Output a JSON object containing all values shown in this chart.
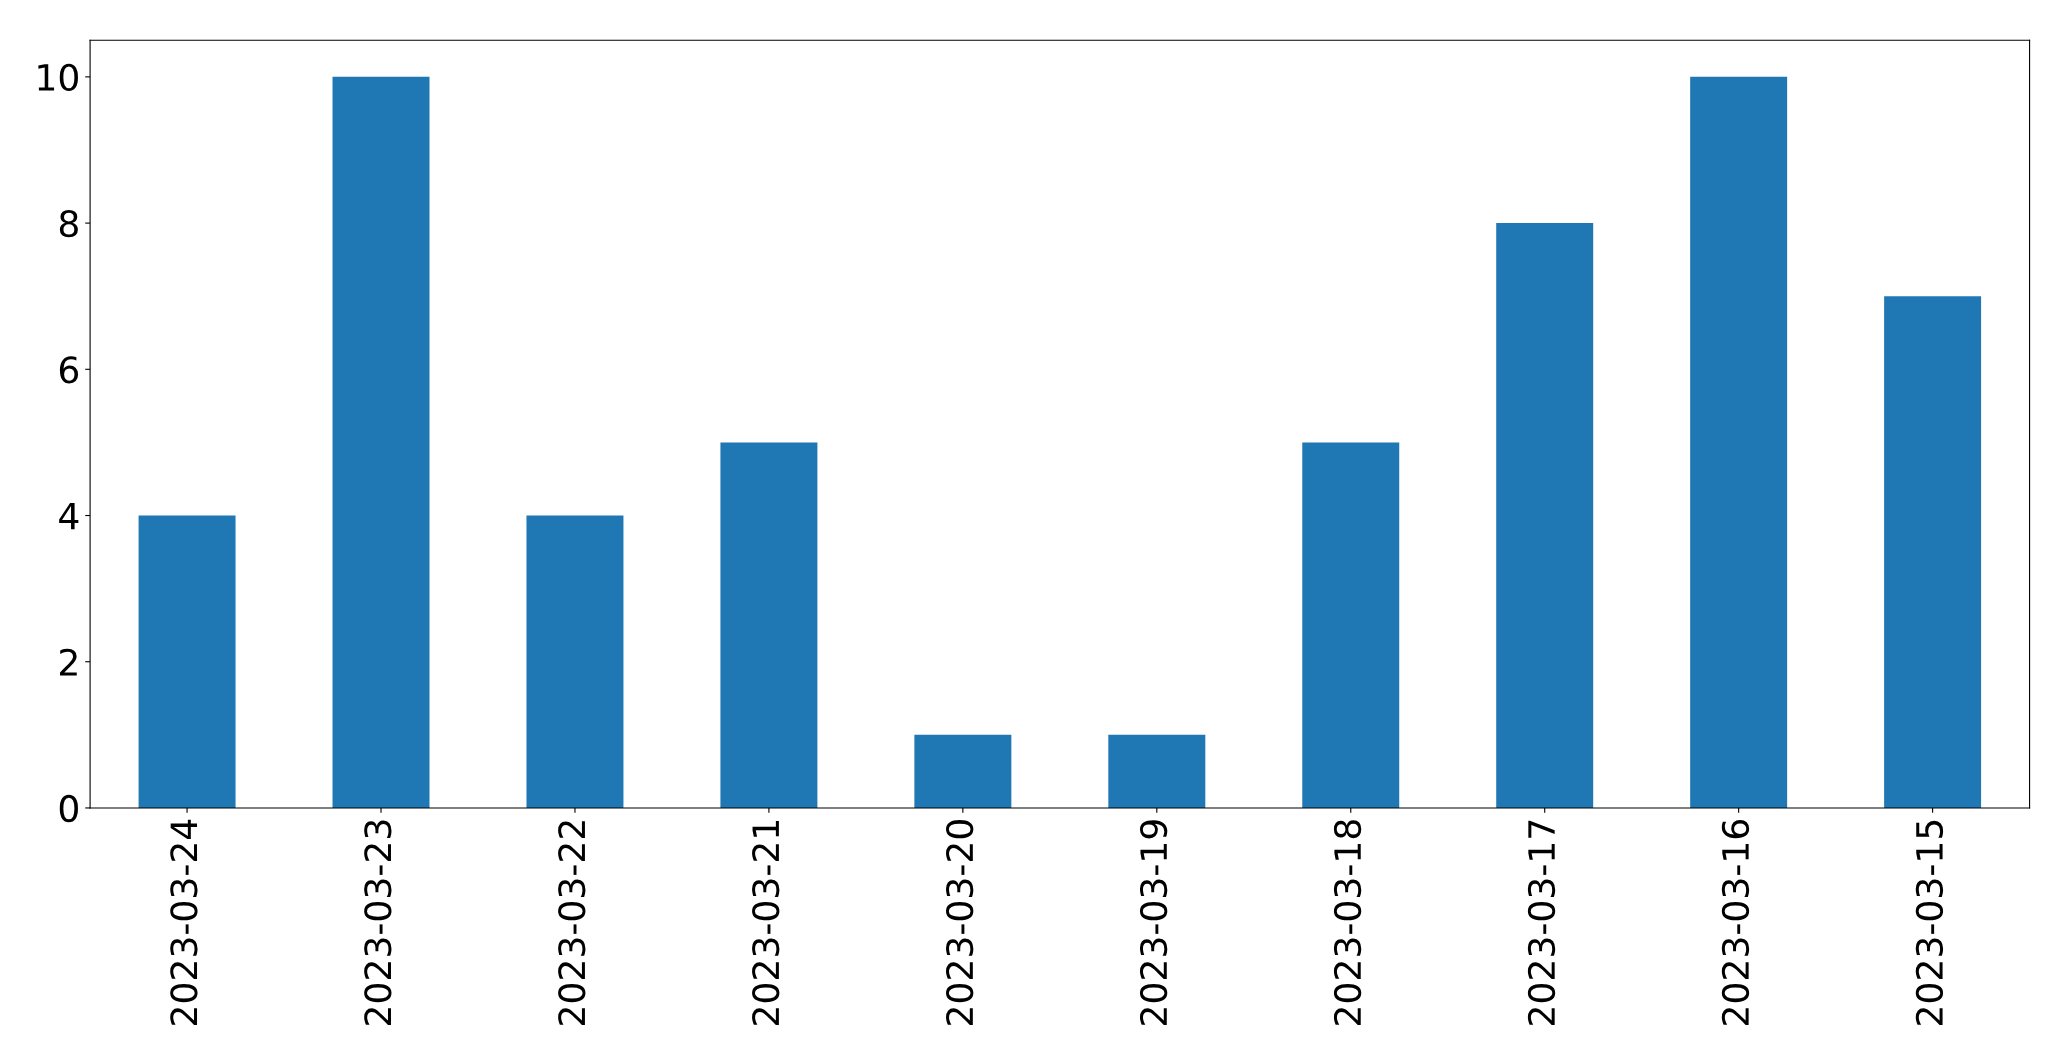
{
  "chart_data": {
    "type": "bar",
    "categories": [
      "2023-03-24",
      "2023-03-23",
      "2023-03-22",
      "2023-03-21",
      "2023-03-20",
      "2023-03-19",
      "2023-03-18",
      "2023-03-17",
      "2023-03-16",
      "2023-03-15"
    ],
    "values": [
      4,
      10,
      4,
      5,
      1,
      1,
      5,
      8,
      10,
      7
    ],
    "color": "#1f77b4",
    "ylim": [
      0,
      10.5
    ],
    "yticks": [
      0,
      2,
      4,
      6,
      8,
      10
    ],
    "grid": false,
    "legend": false
  }
}
